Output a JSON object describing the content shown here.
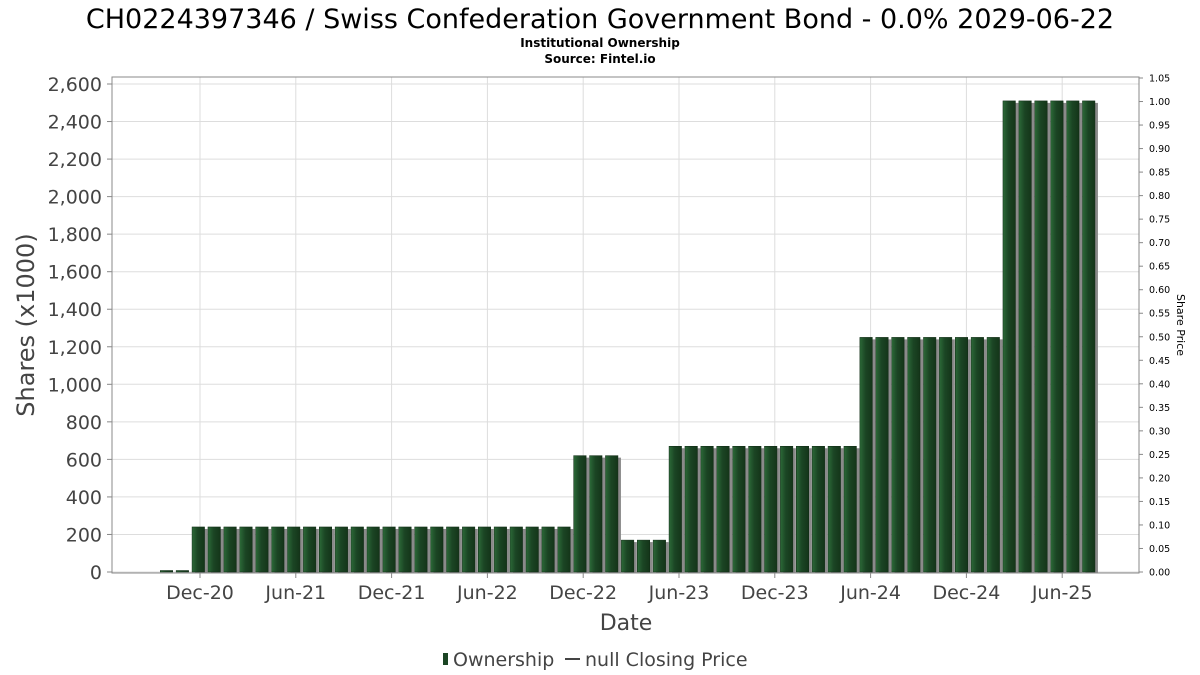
{
  "chart_data": {
    "type": "bar",
    "title": "CH0224397346 / Swiss Confederation Government Bond - 0.0% 2029-06-22",
    "subtitle_lines": [
      "Institutional Ownership",
      "Source: Fintel.io"
    ],
    "xlabel": "Date",
    "ylabel": "Shares (x1000)",
    "y2label": "Share Price",
    "ylim": [
      0,
      2600
    ],
    "y2lim": [
      0,
      1.05
    ],
    "y_ticks": [
      "0",
      "200",
      "400",
      "600",
      "800",
      "1,000",
      "1,200",
      "1,400",
      "1,600",
      "1,800",
      "2,000",
      "2,200",
      "2,400",
      "2,600"
    ],
    "y2_ticks": [
      "0.00",
      "0.05",
      "0.10",
      "0.15",
      "0.20",
      "0.25",
      "0.30",
      "0.35",
      "0.40",
      "0.45",
      "0.50",
      "0.55",
      "0.60",
      "0.65",
      "0.70",
      "0.75",
      "0.80",
      "0.85",
      "0.90",
      "0.95",
      "1.00",
      "1.05"
    ],
    "x_ticks": [
      "Dec-20",
      "Jun-21",
      "Dec-21",
      "Jun-22",
      "Dec-22",
      "Jun-23",
      "Dec-23",
      "Jun-24",
      "Dec-24",
      "Jun-25"
    ],
    "grid": true,
    "legend_position": "bottom",
    "series": [
      {
        "name": "Ownership",
        "color": "#1b4524",
        "values": [
          8,
          8,
          240,
          240,
          240,
          240,
          240,
          240,
          240,
          240,
          240,
          240,
          240,
          240,
          240,
          240,
          240,
          240,
          240,
          240,
          240,
          240,
          240,
          240,
          240,
          240,
          620,
          620,
          620,
          170,
          170,
          170,
          670,
          670,
          670,
          670,
          670,
          670,
          670,
          670,
          670,
          670,
          670,
          670,
          1250,
          1250,
          1250,
          1250,
          1250,
          1250,
          1250,
          1250,
          1250,
          2510,
          2510,
          2510,
          2510,
          2510,
          2510
        ]
      },
      {
        "name": "null Closing Price",
        "color": "#444444",
        "values": []
      }
    ]
  }
}
